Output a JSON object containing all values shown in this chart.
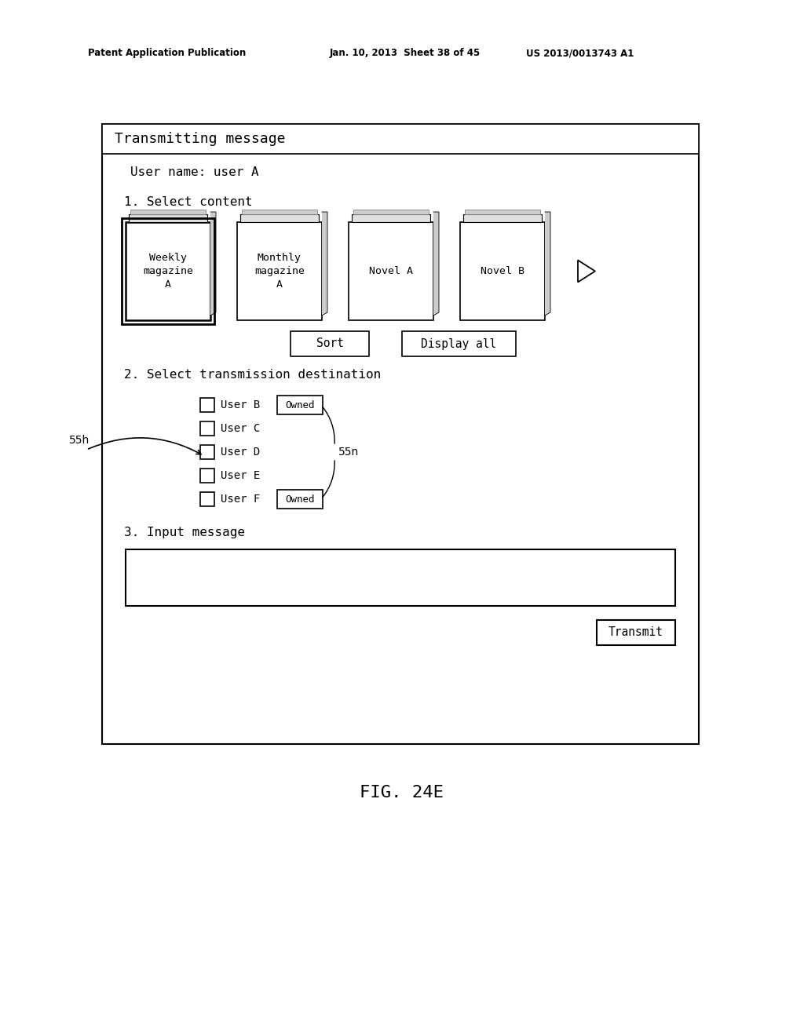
{
  "bg_color": "#ffffff",
  "header_text_left": "Patent Application Publication",
  "header_text_mid": "Jan. 10, 2013  Sheet 38 of 45",
  "header_text_right": "US 2013/0013743 A1",
  "fig_label": "FIG. 24E",
  "title_bar_text": "Transmitting message",
  "user_name_text": "User name: user A",
  "section1_text": "1. Select content",
  "section2_text": "2. Select transmission destination",
  "section3_text": "3. Input message",
  "books": [
    {
      "label": "Weekly\nmagazine\nA",
      "selected": true
    },
    {
      "label": "Monthly\nmagazine\nA",
      "selected": false
    },
    {
      "label": "Novel A",
      "selected": false
    },
    {
      "label": "Novel B",
      "selected": false
    }
  ],
  "sort_button": "Sort",
  "display_all_button": "Display all",
  "users": [
    "User B",
    "User C",
    "User D",
    "User E",
    "User F"
  ],
  "owned_users": [
    "User B",
    "User F"
  ],
  "label_55h": "55h",
  "label_55n": "55n",
  "transmit_button": "Transmit",
  "font_mono": "monospace"
}
